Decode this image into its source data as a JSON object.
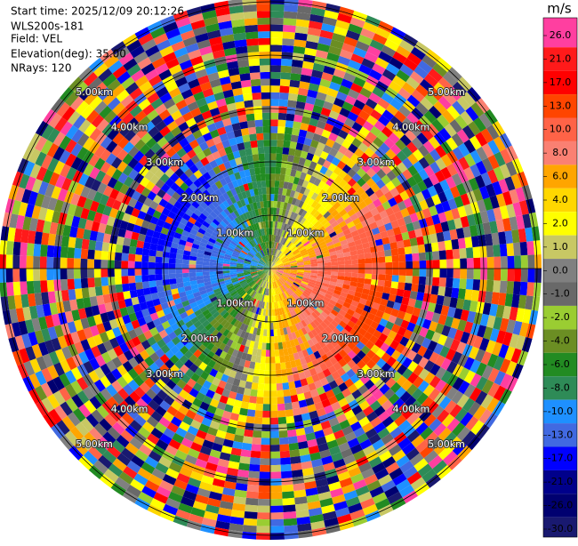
{
  "header": {
    "start_time": "Start time: 2025/12/09 20:12:26",
    "instrument": "WLS200s-181",
    "field": "Field: VEL",
    "elevation": "Elevation(deg): 35.00",
    "nrays": "NRays: 120"
  },
  "chart_data": {
    "type": "ppi",
    "range_rings": [
      {
        "value": 1,
        "label": "1.00km"
      },
      {
        "value": 2,
        "label": "2.00km"
      },
      {
        "value": 3,
        "label": "3.00km"
      },
      {
        "value": 4,
        "label": "4.00km"
      },
      {
        "value": 5,
        "label": "5.00km"
      }
    ],
    "colorbar": {
      "unit": "m/s",
      "ticks": [
        {
          "value": 26,
          "label": "26.0"
        },
        {
          "value": 21,
          "label": "21.0"
        },
        {
          "value": 17,
          "label": "17.0"
        },
        {
          "value": 13,
          "label": "13.0"
        },
        {
          "value": 10,
          "label": "10.0"
        },
        {
          "value": 8,
          "label": "8.0"
        },
        {
          "value": 6,
          "label": "6.0"
        },
        {
          "value": 4,
          "label": "4.0"
        },
        {
          "value": 2,
          "label": "2.0"
        },
        {
          "value": 1,
          "label": "1.0"
        },
        {
          "value": 0,
          "label": "0.0"
        },
        {
          "value": -1,
          "label": "-1.0"
        },
        {
          "value": -2,
          "label": "-2.0"
        },
        {
          "value": -4,
          "label": "-4.0"
        },
        {
          "value": -6,
          "label": "-6.0"
        },
        {
          "value": -8,
          "label": "-8.0"
        },
        {
          "value": -10,
          "label": "-10.0"
        },
        {
          "value": -13,
          "label": "-13.0"
        },
        {
          "value": -17,
          "label": "-17.0"
        },
        {
          "value": -21,
          "label": "-21.0"
        },
        {
          "value": -26,
          "label": "-26.0"
        },
        {
          "value": -30,
          "label": "-30.0"
        }
      ],
      "colors": [
        "#ff3fa0",
        "#ff1a1a",
        "#ff0000",
        "#ff4500",
        "#ff6347",
        "#fa8072",
        "#ffa500",
        "#ffd700",
        "#ffff00",
        "#c8c864",
        "#808080",
        "#696969",
        "#9acd32",
        "#6b8e23",
        "#228b22",
        "#2e8b57",
        "#1e90ff",
        "#4169e1",
        "#0000ff",
        "#00008b",
        "#000070",
        "#191970"
      ]
    }
  }
}
